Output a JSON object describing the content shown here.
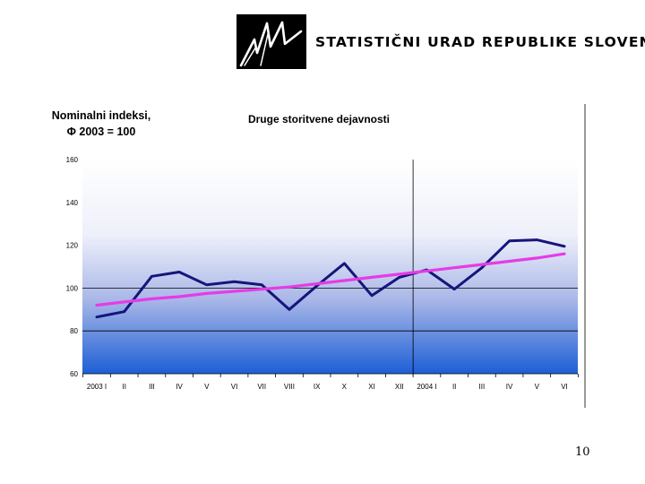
{
  "header": {
    "org_name": "STATISTIČNI URAD REPUBLIKE SLOVENIJE",
    "logo": "surs-logo-icon"
  },
  "chart_data": {
    "type": "line",
    "title": "Druge storitvene dejavnosti",
    "ylabel": "Nominalni indeksi, Φ 2003 = 100",
    "xlabel": "",
    "categories": [
      "2003 I",
      "II",
      "III",
      "IV",
      "V",
      "VI",
      "VII",
      "VIII",
      "IX",
      "X",
      "XI",
      "XII",
      "2004 I",
      "II",
      "III",
      "IV",
      "V",
      "VI"
    ],
    "series": [
      {
        "values": [
          86.5,
          89,
          105.5,
          107.5,
          101.5,
          103,
          101.5,
          90,
          101,
          111.5,
          96.5,
          105,
          108.5,
          99.5,
          109.5,
          122,
          122.5,
          119.5
        ],
        "color": "#15157a"
      },
      {
        "values": [
          92,
          93.5,
          95,
          96,
          97.5,
          98.5,
          99.5,
          100.5,
          102,
          103.5,
          105,
          106.5,
          108,
          109.5,
          111,
          112.5,
          114,
          116
        ],
        "color": "#e63be6"
      }
    ],
    "ylim": [
      60,
      160
    ],
    "yticks": [
      60,
      80,
      100,
      120,
      140,
      160
    ],
    "grid": "y at 80 and 100, vertical divider at 2004 I",
    "background": "blue-gradient"
  },
  "footer": {
    "page_number": "10"
  }
}
